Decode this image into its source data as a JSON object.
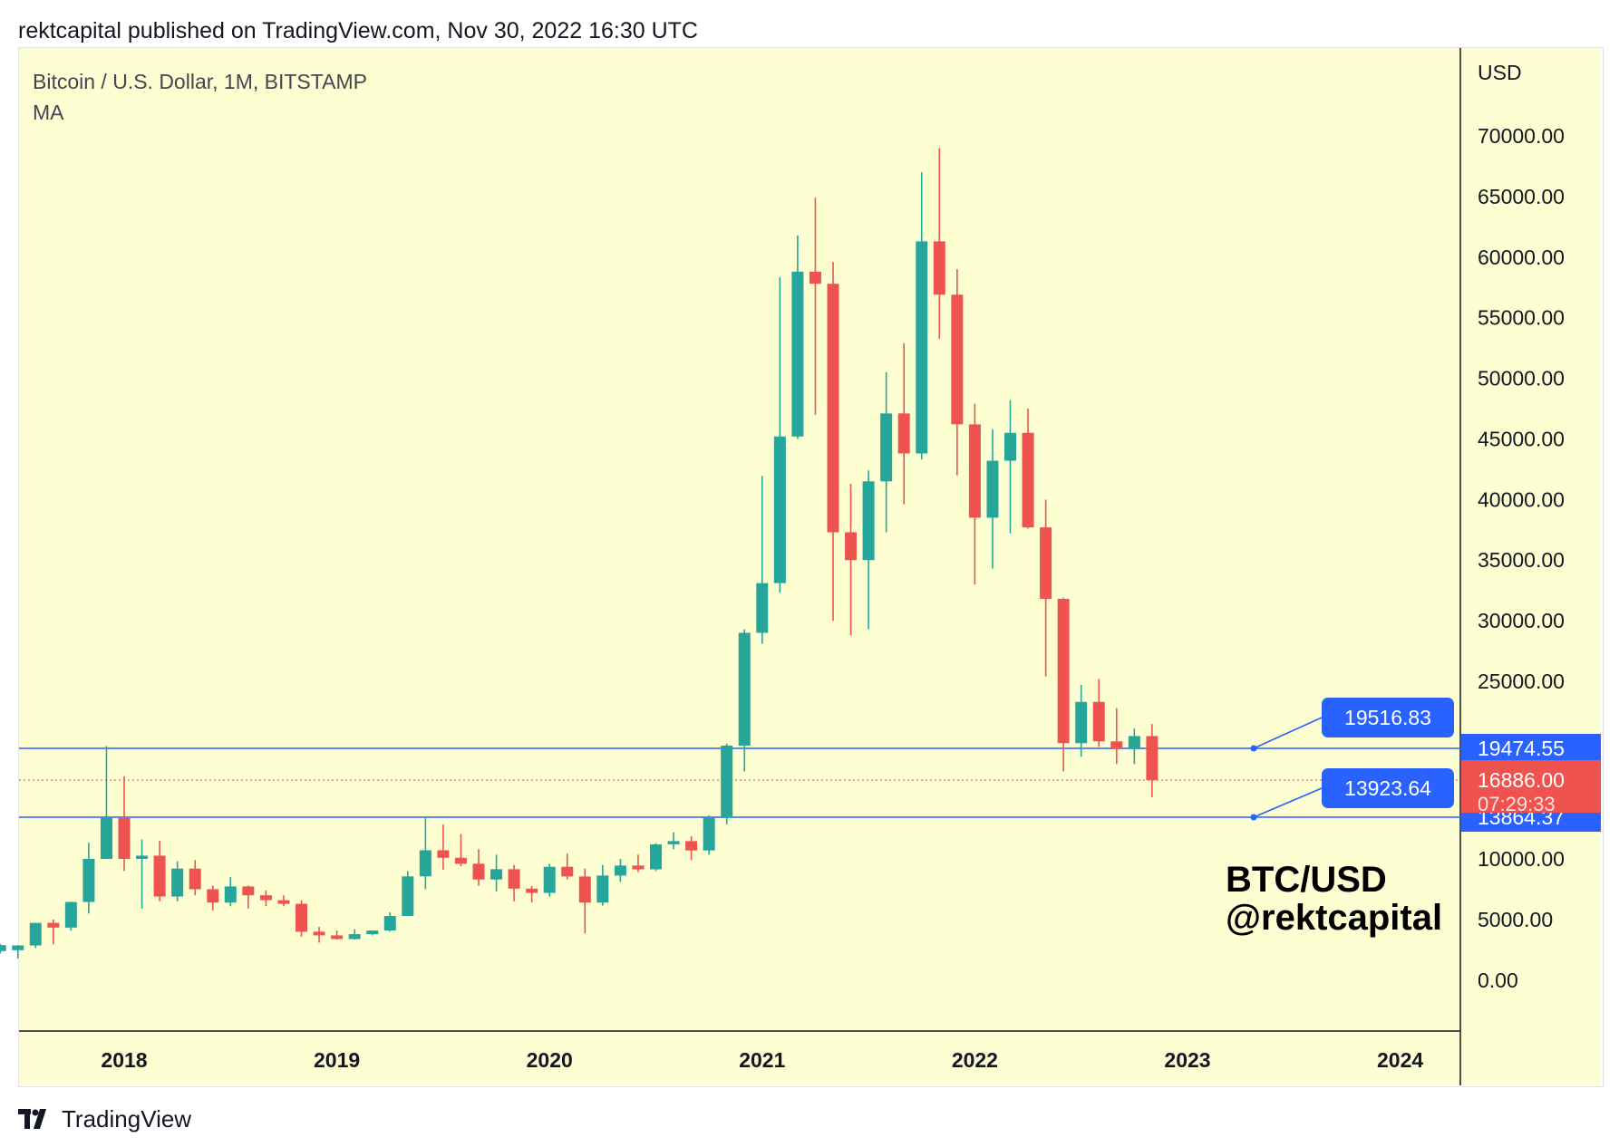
{
  "header": {
    "text": "rektcapital published on TradingView.com, Nov 30, 2022 16:30 UTC"
  },
  "legend": {
    "symbol": "Bitcoin / U.S. Dollar, 1M, BITSTAMP",
    "indicator": "MA"
  },
  "axis": {
    "currency": "USD"
  },
  "watermark": {
    "line1": "BTC/USD",
    "line2": "@rektcapital"
  },
  "footer": {
    "brand": "TradingView"
  },
  "colors": {
    "background": "#fefed3",
    "up": "#26a69a",
    "down": "#ef5350",
    "level": "#2962ff",
    "current": "#ef5350"
  },
  "chart_data": {
    "type": "candlestick",
    "title": "Bitcoin / U.S. Dollar, 1M, BITSTAMP",
    "interval": "1M",
    "ylabel": "USD",
    "ylim": [
      -4000,
      76000
    ],
    "y_ticks": [
      "70000.00",
      "65000.00",
      "60000.00",
      "55000.00",
      "50000.00",
      "45000.00",
      "40000.00",
      "35000.00",
      "30000.00",
      "25000.00",
      "10000.00",
      "5000.00",
      "0.00"
    ],
    "x_ticks": [
      "2018",
      "2019",
      "2020",
      "2021",
      "2022",
      "2023",
      "2024"
    ],
    "grid": false,
    "candles": [
      {
        "date": "2017-06",
        "o": 2400,
        "h": 3000,
        "l": 2200,
        "c": 2900
      },
      {
        "date": "2017-07",
        "o": 2480,
        "h": 2900,
        "l": 1800,
        "c": 2870
      },
      {
        "date": "2017-08",
        "o": 2870,
        "h": 4700,
        "l": 2670,
        "c": 4730
      },
      {
        "date": "2017-09",
        "o": 4730,
        "h": 5000,
        "l": 2970,
        "c": 4340
      },
      {
        "date": "2017-10",
        "o": 4340,
        "h": 6470,
        "l": 4100,
        "c": 6450
      },
      {
        "date": "2017-11",
        "o": 6450,
        "h": 11500,
        "l": 5500,
        "c": 10000
      },
      {
        "date": "2017-12",
        "o": 10000,
        "h": 19666,
        "l": 10800,
        "c": 13800
      },
      {
        "date": "2018-01",
        "o": 13800,
        "h": 17200,
        "l": 9000,
        "c": 10000
      },
      {
        "date": "2018-02",
        "o": 10000,
        "h": 11800,
        "l": 5900,
        "c": 10300
      },
      {
        "date": "2018-03",
        "o": 10300,
        "h": 11700,
        "l": 6500,
        "c": 6900
      },
      {
        "date": "2018-04",
        "o": 6900,
        "h": 9800,
        "l": 6500,
        "c": 9200
      },
      {
        "date": "2018-05",
        "o": 9200,
        "h": 9900,
        "l": 7000,
        "c": 7500
      },
      {
        "date": "2018-06",
        "o": 7500,
        "h": 7800,
        "l": 5750,
        "c": 6400
      },
      {
        "date": "2018-07",
        "o": 6400,
        "h": 8500,
        "l": 6100,
        "c": 7730
      },
      {
        "date": "2018-08",
        "o": 7730,
        "h": 7800,
        "l": 5900,
        "c": 7000
      },
      {
        "date": "2018-09",
        "o": 7000,
        "h": 7400,
        "l": 6100,
        "c": 6600
      },
      {
        "date": "2018-10",
        "o": 6600,
        "h": 7000,
        "l": 6100,
        "c": 6300
      },
      {
        "date": "2018-11",
        "o": 6300,
        "h": 6600,
        "l": 3600,
        "c": 4000
      },
      {
        "date": "2018-12",
        "o": 4000,
        "h": 4400,
        "l": 3100,
        "c": 3700
      },
      {
        "date": "2019-01",
        "o": 3700,
        "h": 4100,
        "l": 3350,
        "c": 3400
      },
      {
        "date": "2019-02",
        "o": 3400,
        "h": 4200,
        "l": 3350,
        "c": 3800
      },
      {
        "date": "2019-03",
        "o": 3800,
        "h": 4100,
        "l": 3700,
        "c": 4100
      },
      {
        "date": "2019-04",
        "o": 4100,
        "h": 5600,
        "l": 4000,
        "c": 5300
      },
      {
        "date": "2019-05",
        "o": 5300,
        "h": 9000,
        "l": 5300,
        "c": 8560
      },
      {
        "date": "2019-06",
        "o": 8560,
        "h": 13880,
        "l": 7500,
        "c": 10800
      },
      {
        "date": "2019-07",
        "o": 10800,
        "h": 13200,
        "l": 9100,
        "c": 10100
      },
      {
        "date": "2019-08",
        "o": 10100,
        "h": 12300,
        "l": 9400,
        "c": 9600
      },
      {
        "date": "2019-09",
        "o": 9600,
        "h": 10900,
        "l": 7800,
        "c": 8300
      },
      {
        "date": "2019-10",
        "o": 8300,
        "h": 10400,
        "l": 7300,
        "c": 9150
      },
      {
        "date": "2019-11",
        "o": 9150,
        "h": 9500,
        "l": 6500,
        "c": 7550
      },
      {
        "date": "2019-12",
        "o": 7550,
        "h": 7750,
        "l": 6400,
        "c": 7200
      },
      {
        "date": "2020-01",
        "o": 7200,
        "h": 9600,
        "l": 6900,
        "c": 9350
      },
      {
        "date": "2020-02",
        "o": 9350,
        "h": 10500,
        "l": 8300,
        "c": 8550
      },
      {
        "date": "2020-03",
        "o": 8550,
        "h": 9200,
        "l": 3860,
        "c": 6400
      },
      {
        "date": "2020-04",
        "o": 6400,
        "h": 9500,
        "l": 6150,
        "c": 8630
      },
      {
        "date": "2020-05",
        "o": 8630,
        "h": 10000,
        "l": 8100,
        "c": 9450
      },
      {
        "date": "2020-06",
        "o": 9450,
        "h": 10400,
        "l": 8900,
        "c": 9140
      },
      {
        "date": "2020-07",
        "o": 9140,
        "h": 11450,
        "l": 8990,
        "c": 11350
      },
      {
        "date": "2020-08",
        "o": 11350,
        "h": 12480,
        "l": 10900,
        "c": 11650
      },
      {
        "date": "2020-09",
        "o": 11650,
        "h": 12100,
        "l": 9900,
        "c": 10780
      },
      {
        "date": "2020-10",
        "o": 10780,
        "h": 14000,
        "l": 10400,
        "c": 13800
      },
      {
        "date": "2020-11",
        "o": 13800,
        "h": 19864,
        "l": 13200,
        "c": 19700
      },
      {
        "date": "2020-12",
        "o": 19700,
        "h": 29300,
        "l": 17600,
        "c": 29000
      },
      {
        "date": "2021-01",
        "o": 29000,
        "h": 41950,
        "l": 28100,
        "c": 33100
      },
      {
        "date": "2021-02",
        "o": 33100,
        "h": 58350,
        "l": 32300,
        "c": 45200
      },
      {
        "date": "2021-03",
        "o": 45200,
        "h": 61800,
        "l": 45000,
        "c": 58800
      },
      {
        "date": "2021-04",
        "o": 58800,
        "h": 64900,
        "l": 47000,
        "c": 57800
      },
      {
        "date": "2021-05",
        "o": 57800,
        "h": 59600,
        "l": 30000,
        "c": 37300
      },
      {
        "date": "2021-06",
        "o": 37300,
        "h": 41300,
        "l": 28800,
        "c": 35000
      },
      {
        "date": "2021-07",
        "o": 35000,
        "h": 42400,
        "l": 29300,
        "c": 41500
      },
      {
        "date": "2021-08",
        "o": 41500,
        "h": 50500,
        "l": 37300,
        "c": 47100
      },
      {
        "date": "2021-09",
        "o": 47100,
        "h": 52900,
        "l": 39600,
        "c": 43800
      },
      {
        "date": "2021-10",
        "o": 43800,
        "h": 67000,
        "l": 43300,
        "c": 61300
      },
      {
        "date": "2021-11",
        "o": 61300,
        "h": 69000,
        "l": 53250,
        "c": 56900
      },
      {
        "date": "2021-12",
        "o": 56900,
        "h": 59000,
        "l": 42000,
        "c": 46200
      },
      {
        "date": "2022-01",
        "o": 46200,
        "h": 47900,
        "l": 33000,
        "c": 38500
      },
      {
        "date": "2022-02",
        "o": 38500,
        "h": 45800,
        "l": 34300,
        "c": 43200
      },
      {
        "date": "2022-03",
        "o": 43200,
        "h": 48200,
        "l": 37200,
        "c": 45500
      },
      {
        "date": "2022-04",
        "o": 45500,
        "h": 47500,
        "l": 37600,
        "c": 37700
      },
      {
        "date": "2022-05",
        "o": 37700,
        "h": 40000,
        "l": 25400,
        "c": 31800
      },
      {
        "date": "2022-06",
        "o": 31800,
        "h": 31900,
        "l": 17600,
        "c": 19900
      },
      {
        "date": "2022-07",
        "o": 19900,
        "h": 24700,
        "l": 18800,
        "c": 23300
      },
      {
        "date": "2022-08",
        "o": 23300,
        "h": 25200,
        "l": 19600,
        "c": 20050
      },
      {
        "date": "2022-09",
        "o": 20050,
        "h": 22800,
        "l": 18200,
        "c": 19420
      },
      {
        "date": "2022-10",
        "o": 19420,
        "h": 21100,
        "l": 18200,
        "c": 20490
      },
      {
        "date": "2022-11",
        "o": 20490,
        "h": 21480,
        "l": 15476,
        "c": 16886
      }
    ],
    "levels": [
      {
        "value": 19474.55,
        "label": "19516.83",
        "axis_label": "19474.55"
      },
      {
        "value": 13864.37,
        "label": "13923.64",
        "axis_label": "13864.37"
      }
    ],
    "current_price": {
      "value": 16886.0,
      "label": "16886.00",
      "countdown": "07:29:33"
    }
  }
}
